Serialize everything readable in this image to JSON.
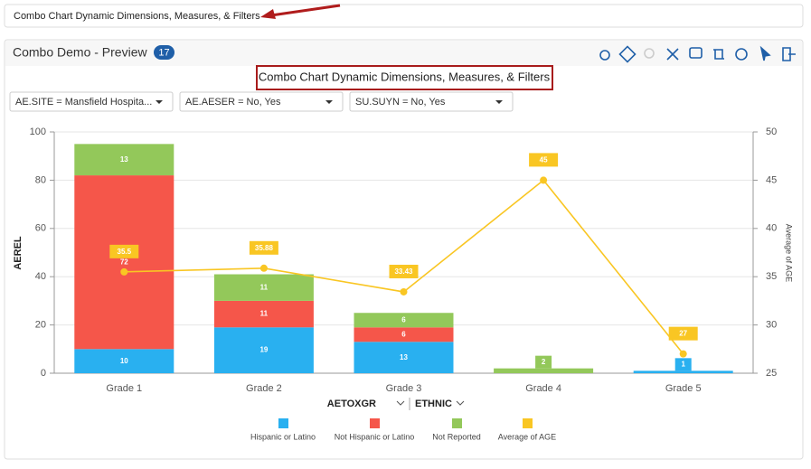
{
  "search_text": "Combo Chart Dynamic Dimensions, Measures, & Filters",
  "panel": {
    "title": "Combo Demo - Preview",
    "badge": "17"
  },
  "filters": [
    "AE.SITE = Mansfield Hospita...",
    "AE.AESER = No, Yes",
    "SU.SUYN = No, Yes"
  ],
  "chart_data": {
    "type": "combo",
    "title": "Combo Chart Dynamic Dimensions, Measures, & Filters",
    "categories": [
      "Grade 1",
      "Grade 2",
      "Grade 3",
      "Grade 4",
      "Grade 5"
    ],
    "x_label": [
      "AETOXGR",
      "ETHNIC"
    ],
    "y_label": "AEREL",
    "y2_label": "Average of AGE",
    "ylim": [
      0,
      100
    ],
    "yticks": [
      0,
      20,
      40,
      60,
      80,
      100
    ],
    "y2lim": [
      25,
      50
    ],
    "y2ticks": [
      25,
      30,
      35,
      40,
      45,
      50
    ],
    "series": [
      {
        "name": "Hispanic or Latino",
        "type": "bar",
        "color": "#29b0f0",
        "values": [
          10,
          19,
          13,
          null,
          1
        ]
      },
      {
        "name": "Not Hispanic or Latino",
        "type": "bar",
        "color": "#f5564a",
        "values": [
          72,
          11,
          6,
          null,
          null
        ]
      },
      {
        "name": "Not Reported",
        "type": "bar",
        "color": "#93c85a",
        "values": [
          13,
          11,
          6,
          2,
          null
        ]
      },
      {
        "name": "Average of AGE",
        "type": "line",
        "axis": "y2",
        "color": "#f9c623",
        "values": [
          35.5,
          35.88,
          33.43,
          45,
          27
        ]
      }
    ]
  }
}
